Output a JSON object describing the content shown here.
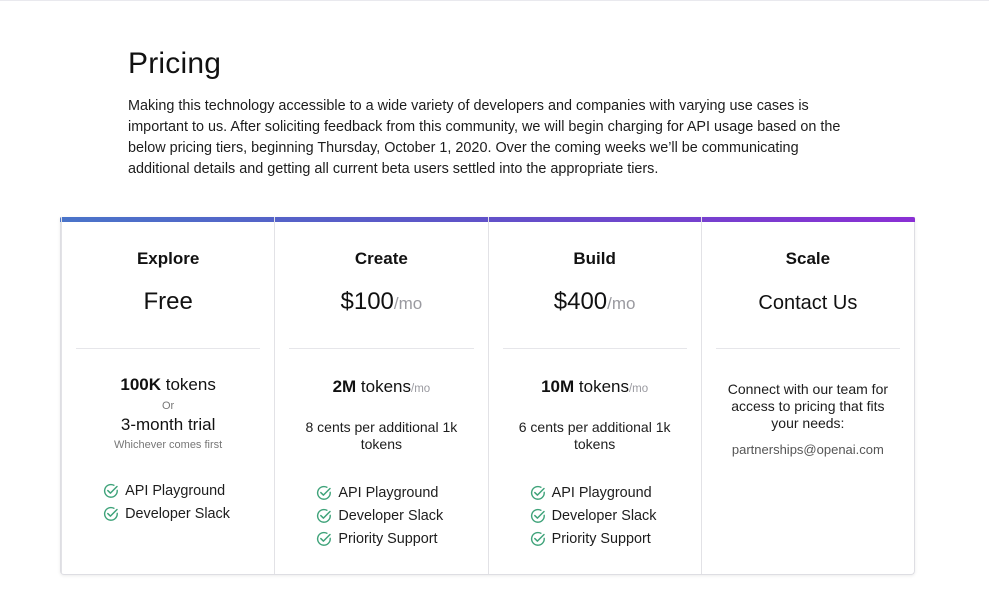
{
  "page": {
    "title": "Pricing",
    "intro": "Making this technology accessible to a wide variety of developers and companies with varying use cases is important to us. After soliciting feedback from this community, we will begin charging for API usage based on the below pricing tiers, beginning Thursday, October 1, 2020. Over the coming weeks we’ll be communicating additional details and getting all current beta users settled into the appropriate tiers."
  },
  "colors": {
    "gradient_start": "#4a74c9",
    "gradient_end": "#8a2fd4",
    "check": "#3fa37a"
  },
  "tiers": [
    {
      "name": "Explore",
      "price": "Free",
      "tokens_amount": "100K",
      "tokens_word": " tokens",
      "or_text": "Or",
      "trial": "3-month trial",
      "whichever": "Whichever comes first",
      "features": [
        "API Playground",
        "Developer Slack"
      ]
    },
    {
      "name": "Create",
      "price": "$100",
      "price_unit": "/mo",
      "tokens_amount": "2M",
      "tokens_word": " tokens",
      "tokens_unit": "/mo",
      "extra": "8 cents per additional 1k tokens",
      "features": [
        "API Playground",
        "Developer Slack",
        "Priority Support"
      ]
    },
    {
      "name": "Build",
      "price": "$400",
      "price_unit": "/mo",
      "tokens_amount": "10M",
      "tokens_word": " tokens",
      "tokens_unit": "/mo",
      "extra": "6 cents per additional 1k tokens",
      "features": [
        "API Playground",
        "Developer Slack",
        "Priority Support"
      ]
    },
    {
      "name": "Scale",
      "price": "Contact Us",
      "description": "Connect with our team for access to pricing that fits your needs:",
      "email": "partnerships@openai.com"
    }
  ]
}
